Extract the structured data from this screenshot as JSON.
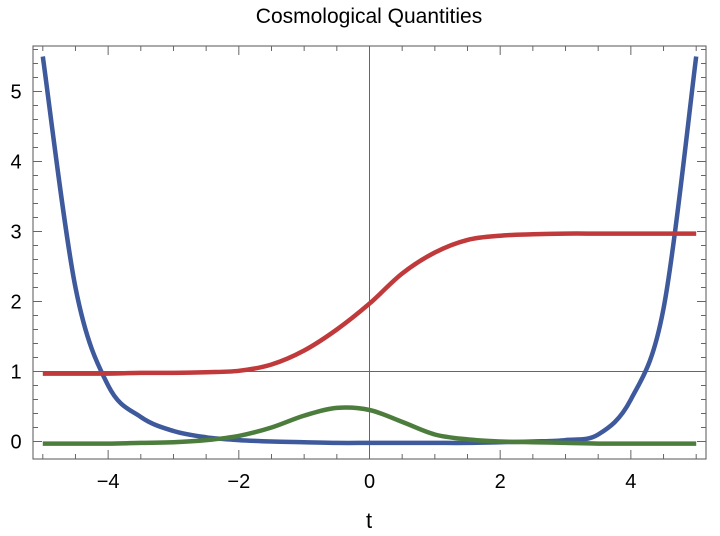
{
  "chart_data": {
    "type": "line",
    "title": "Cosmological Quantities",
    "xlabel": "t",
    "ylabel": "",
    "xlim": [
      -5.15,
      5.15
    ],
    "ylim": [
      -0.25,
      5.65
    ],
    "x_ticks": [
      -4,
      -2,
      0,
      2,
      4
    ],
    "x_tick_labels": [
      "−4",
      "−2",
      "0",
      "2",
      "4"
    ],
    "y_ticks": [
      0,
      1,
      2,
      3,
      4,
      5
    ],
    "y_tick_labels": [
      "0",
      "1",
      "2",
      "3",
      "4",
      "5"
    ],
    "reference_lines": {
      "x": 0,
      "y": 1
    },
    "grid": false,
    "frame": true,
    "x": [
      -5,
      -4.5,
      -4,
      -3.5,
      -3,
      -2.5,
      -2,
      -1.5,
      -1,
      -0.5,
      0,
      0.5,
      1,
      1.5,
      2,
      2.5,
      3,
      3.5,
      4,
      4.5,
      5
    ],
    "series": [
      {
        "color": "#3e5a9c",
        "values": [
          5.5,
          2.2,
          0.8,
          0.35,
          0.15,
          0.06,
          0.02,
          0.0,
          -0.01,
          -0.02,
          -0.02,
          -0.02,
          -0.02,
          -0.02,
          -0.01,
          0.0,
          0.02,
          0.1,
          0.6,
          1.9,
          5.5
        ]
      },
      {
        "color": "#c0393b",
        "values": [
          0.97,
          0.97,
          0.97,
          0.98,
          0.98,
          0.99,
          1.01,
          1.1,
          1.3,
          1.6,
          1.97,
          2.4,
          2.7,
          2.88,
          2.94,
          2.96,
          2.97,
          2.97,
          2.97,
          2.97,
          2.97
        ]
      },
      {
        "color": "#4c7d3d",
        "values": [
          -0.03,
          -0.03,
          -0.03,
          -0.02,
          -0.01,
          0.02,
          0.08,
          0.2,
          0.37,
          0.48,
          0.45,
          0.28,
          0.1,
          0.03,
          0.0,
          -0.01,
          -0.02,
          -0.03,
          -0.03,
          -0.03,
          -0.03
        ]
      }
    ]
  }
}
